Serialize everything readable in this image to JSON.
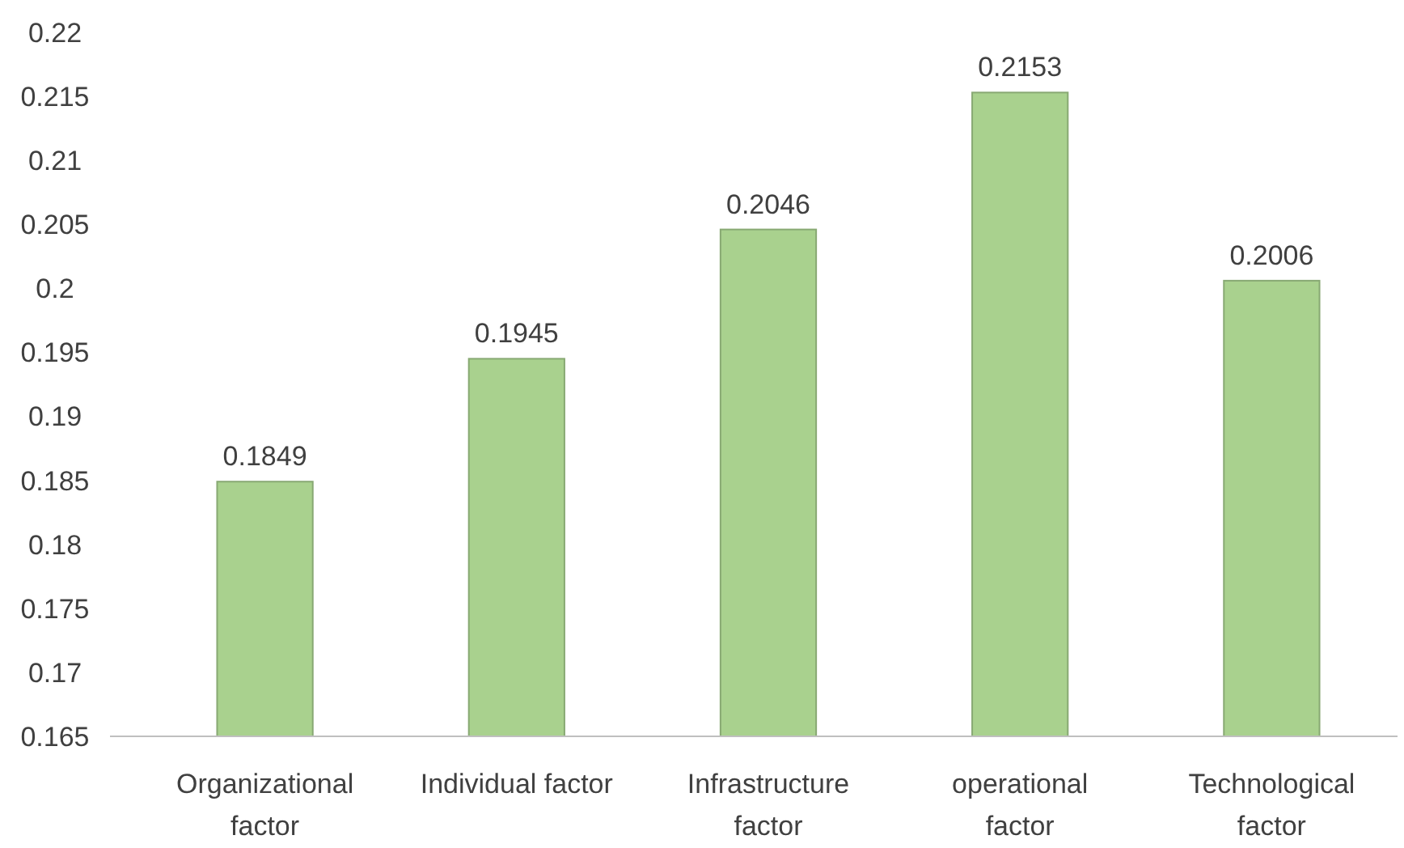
{
  "chart_data": {
    "type": "bar",
    "categories": [
      "Organizational factor",
      "Individual factor",
      "Infrastructure factor",
      "operational factor",
      "Technological factor"
    ],
    "values": [
      0.1849,
      0.1945,
      0.2046,
      0.2153,
      0.2006
    ],
    "color": "#a9d18e",
    "ylim": [
      0.165,
      0.22
    ],
    "yticks": [
      0.165,
      0.17,
      0.175,
      0.18,
      0.185,
      0.19,
      0.195,
      0.2,
      0.205,
      0.21,
      0.215,
      0.22
    ],
    "data_labels": true
  }
}
